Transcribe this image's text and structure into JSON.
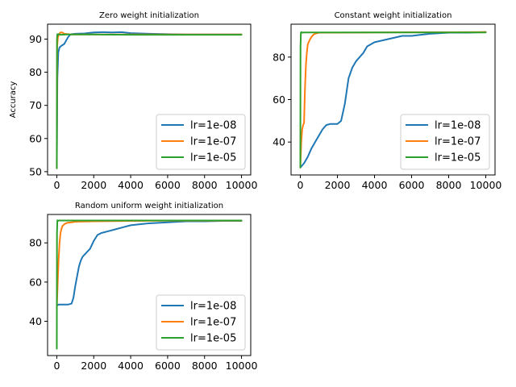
{
  "colors": {
    "lr=1e-08": "#1f77b4",
    "lr=1e-07": "#ff7f0e",
    "lr=1e-05": "#2ca02c"
  },
  "chart_data": [
    {
      "type": "line",
      "title": "Zero weight initialization",
      "ylabel": "Accuracy",
      "xlim": [
        -500,
        10500
      ],
      "ylim": [
        49,
        94.5
      ],
      "xticks": [
        0,
        2000,
        4000,
        6000,
        8000,
        10000
      ],
      "yticks": [
        50,
        60,
        70,
        80,
        90
      ],
      "legend": "lower-right",
      "series": [
        {
          "name": "lr=1e-08",
          "color": "#1f77b4",
          "x": [
            0,
            30,
            80,
            150,
            250,
            400,
            500,
            600,
            700,
            800,
            1000,
            1500,
            2000,
            2500,
            3000,
            3500,
            4000,
            5000,
            6000,
            7000,
            8000,
            9000,
            10000
          ],
          "y": [
            52,
            78,
            86,
            87.5,
            88,
            88.5,
            89.5,
            90.5,
            91.2,
            91.5,
            91.6,
            91.7,
            92,
            92.1,
            92,
            92.1,
            91.8,
            91.6,
            91.5,
            91.4,
            91.4,
            91.4,
            91.4
          ]
        },
        {
          "name": "lr=1e-07",
          "color": "#ff7f0e",
          "x": [
            0,
            20,
            60,
            120,
            200,
            300,
            400,
            600,
            800,
            1000,
            2000,
            4000,
            6000,
            8000,
            10000
          ],
          "y": [
            51,
            88,
            90.5,
            91.5,
            92,
            92,
            91.6,
            91.5,
            91.4,
            91.4,
            91.4,
            91.4,
            91.4,
            91.4,
            91.4
          ]
        },
        {
          "name": "lr=1e-05",
          "color": "#2ca02c",
          "x": [
            0,
            10,
            30,
            60,
            100,
            200,
            500,
            1000,
            2000,
            4000,
            6000,
            8000,
            10000
          ],
          "y": [
            51,
            90,
            91.5,
            91.2,
            91.5,
            91.3,
            91.4,
            91.4,
            91.4,
            91.3,
            91.3,
            91.3,
            91.3
          ]
        }
      ]
    },
    {
      "type": "line",
      "title": "Constant weight initialization",
      "xlim": [
        -500,
        10500
      ],
      "ylim": [
        24.5,
        95.5
      ],
      "xticks": [
        0,
        2000,
        4000,
        6000,
        8000,
        10000
      ],
      "yticks": [
        40,
        60,
        80
      ],
      "legend": "lower-right",
      "series": [
        {
          "name": "lr=1e-08",
          "color": "#1f77b4",
          "x": [
            0,
            200,
            400,
            600,
            800,
            1000,
            1200,
            1400,
            1600,
            1800,
            2000,
            2200,
            2400,
            2600,
            2800,
            3000,
            3200,
            3400,
            3600,
            3800,
            4000,
            4500,
            5000,
            5500,
            6000,
            6500,
            7000,
            8000,
            9000,
            10000
          ],
          "y": [
            28,
            30,
            33,
            37,
            40,
            43,
            46,
            48,
            48.5,
            48.5,
            48.5,
            50,
            58,
            70,
            75,
            78,
            80,
            82,
            85,
            86,
            87,
            88,
            89,
            90,
            90,
            90.5,
            91,
            91.5,
            91.5,
            91.8
          ]
        },
        {
          "name": "lr=1e-07",
          "color": "#ff7f0e",
          "x": [
            0,
            50,
            100,
            150,
            200,
            250,
            300,
            350,
            400,
            500,
            600,
            700,
            800,
            1000,
            2000,
            4000,
            6000,
            8000,
            10000
          ],
          "y": [
            28,
            40,
            46,
            48,
            49,
            65,
            76,
            82,
            86,
            88,
            89.5,
            90.5,
            91,
            91.5,
            91.5,
            91.6,
            91.7,
            91.7,
            91.8
          ]
        },
        {
          "name": "lr=1e-05",
          "color": "#2ca02c",
          "x": [
            0,
            10,
            30,
            60,
            100,
            200,
            500,
            1000,
            2000,
            4000,
            6000,
            8000,
            10000
          ],
          "y": [
            28,
            85,
            91.5,
            91.8,
            91.5,
            91.6,
            91.6,
            91.6,
            91.6,
            91.6,
            91.6,
            91.6,
            91.6
          ]
        }
      ]
    },
    {
      "type": "line",
      "title": "Random uniform weight initialization",
      "xlim": [
        -500,
        10500
      ],
      "ylim": [
        22.5,
        94.5
      ],
      "xticks": [
        0,
        2000,
        4000,
        6000,
        8000,
        10000
      ],
      "yticks": [
        40,
        60,
        80
      ],
      "legend": "lower-right",
      "series": [
        {
          "name": "lr=1e-08",
          "color": "#1f77b4",
          "x": [
            0,
            100,
            200,
            400,
            600,
            800,
            900,
            1000,
            1100,
            1200,
            1300,
            1400,
            1600,
            1800,
            2000,
            2200,
            2400,
            2800,
            3200,
            3600,
            4000,
            4500,
            5000,
            6000,
            7000,
            8000,
            9000,
            10000
          ],
          "y": [
            48,
            48.5,
            48.5,
            48.5,
            48.5,
            49,
            52,
            58,
            63,
            68,
            71,
            73,
            75,
            77,
            81,
            84,
            85,
            86,
            87,
            88,
            89,
            89.5,
            90,
            90.5,
            91,
            91,
            91.2,
            91.2
          ]
        },
        {
          "name": "lr=1e-07",
          "color": "#ff7f0e",
          "x": [
            0,
            50,
            100,
            150,
            200,
            250,
            300,
            400,
            500,
            600,
            800,
            1000,
            2000,
            4000,
            6000,
            8000,
            10000
          ],
          "y": [
            47,
            60,
            72,
            80,
            85,
            87,
            88.5,
            89.5,
            90,
            90.3,
            90.5,
            90.8,
            91,
            91.2,
            91.3,
            91.3,
            91.3
          ]
        },
        {
          "name": "lr=1e-05",
          "color": "#2ca02c",
          "x": [
            0,
            10,
            30,
            60,
            100,
            200,
            500,
            1000,
            2000,
            4000,
            6000,
            8000,
            10000
          ],
          "y": [
            26,
            85,
            91.5,
            91.2,
            91.4,
            91.4,
            91.4,
            91.4,
            91.4,
            91.4,
            91.4,
            91.4,
            91.4
          ]
        }
      ]
    }
  ]
}
